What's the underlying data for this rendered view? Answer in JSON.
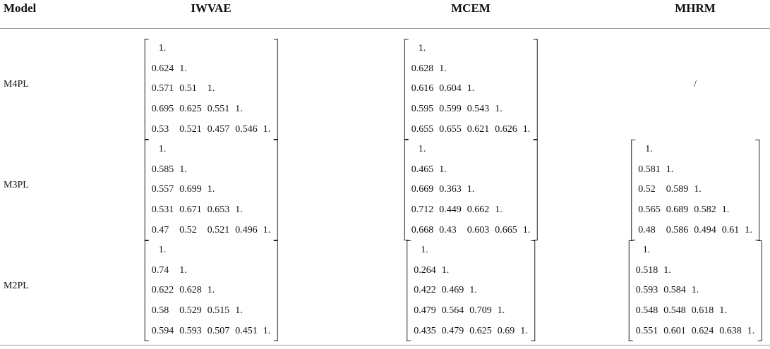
{
  "table": {
    "header": [
      "Model",
      "IWVAE",
      "MCEM",
      "MHRM"
    ],
    "rows": [
      {
        "label": "M4PL",
        "cells": [
          [
            [
              "1."
            ],
            [
              "0.624",
              "1."
            ],
            [
              "0.571",
              "0.51",
              "1."
            ],
            [
              "0.695",
              "0.625",
              "0.551",
              "1."
            ],
            [
              "0.53",
              "0.521",
              "0.457",
              "0.546",
              "1."
            ]
          ],
          [
            [
              "1."
            ],
            [
              "0.628",
              "1."
            ],
            [
              "0.616",
              "0.604",
              "1."
            ],
            [
              "0.595",
              "0.599",
              "0.543",
              "1."
            ],
            [
              "0.655",
              "0.655",
              "0.621",
              "0.626",
              "1."
            ]
          ],
          "/"
        ]
      },
      {
        "label": "M3PL",
        "cells": [
          [
            [
              "1."
            ],
            [
              "0.585",
              "1."
            ],
            [
              "0.557",
              "0.699",
              "1."
            ],
            [
              "0.531",
              "0.671",
              "0.653",
              "1."
            ],
            [
              "0.47",
              "0.52",
              "0.521",
              "0.496",
              "1."
            ]
          ],
          [
            [
              "1."
            ],
            [
              "0.465",
              "1."
            ],
            [
              "0.669",
              "0.363",
              "1."
            ],
            [
              "0.712",
              "0.449",
              "0.662",
              "1."
            ],
            [
              "0.668",
              "0.43",
              "0.603",
              "0.665",
              "1."
            ]
          ],
          [
            [
              "1."
            ],
            [
              "0.581",
              "1."
            ],
            [
              "0.52",
              "0.589",
              "1."
            ],
            [
              "0.565",
              "0.689",
              "0.582",
              "1."
            ],
            [
              "0.48",
              "0.586",
              "0.494",
              "0.61",
              "1."
            ]
          ]
        ]
      },
      {
        "label": "M2PL",
        "cells": [
          [
            [
              "1."
            ],
            [
              "0.74",
              "1."
            ],
            [
              "0.622",
              "0.628",
              "1."
            ],
            [
              "0.58",
              "0.529",
              "0.515",
              "1."
            ],
            [
              "0.594",
              "0.593",
              "0.507",
              "0.451",
              "1."
            ]
          ],
          [
            [
              "1."
            ],
            [
              "0.264",
              "1."
            ],
            [
              "0.422",
              "0.469",
              "1."
            ],
            [
              "0.479",
              "0.564",
              "0.709",
              "1."
            ],
            [
              "0.435",
              "0.479",
              "0.625",
              "0.69",
              "1."
            ]
          ],
          [
            [
              "1."
            ],
            [
              "0.518",
              "1."
            ],
            [
              "0.593",
              "0.584",
              "1."
            ],
            [
              "0.548",
              "0.548",
              "0.618",
              "1."
            ],
            [
              "0.551",
              "0.601",
              "0.624",
              "0.638",
              "1."
            ]
          ]
        ]
      }
    ]
  }
}
